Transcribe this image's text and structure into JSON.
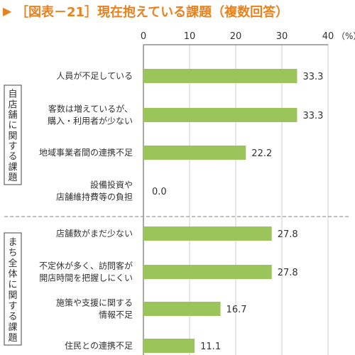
{
  "chart_data": {
    "type": "bar",
    "orientation": "horizontal",
    "title_marker": "▶",
    "title": "［図表－21］現在抱えている課題（複数回答）",
    "unit": "（%）",
    "xlim": [
      0,
      40
    ],
    "xticks": [
      "0",
      "10",
      "20",
      "30",
      "40"
    ],
    "grid": true,
    "groups": [
      {
        "label": "自店舗に関する課題",
        "items": [
          {
            "label": [
              "人員が不足している"
            ],
            "value": 33.3,
            "value_label": "33.3"
          },
          {
            "label": [
              "客数は増えているが、",
              "購入・利用者が少ない"
            ],
            "value": 33.3,
            "value_label": "33.3"
          },
          {
            "label": [
              "地域事業者間の連携不足"
            ],
            "value": 22.2,
            "value_label": "22.2"
          },
          {
            "label": [
              "設備投資や",
              "店舗維持費等の負担"
            ],
            "value": 0.0,
            "value_label": "0.0"
          }
        ]
      },
      {
        "label": "まち全体に関する課題",
        "items": [
          {
            "label": [
              "店舗数がまだ少ない"
            ],
            "value": 27.8,
            "value_label": "27.8"
          },
          {
            "label": [
              "不定休が多く、訪問客が",
              "開店時間を把握しにくい"
            ],
            "value": 27.8,
            "value_label": "27.8"
          },
          {
            "label": [
              "施策や支援に関する",
              "情報不足"
            ],
            "value": 16.7,
            "value_label": "16.7"
          },
          {
            "label": [
              "住民との連携不足"
            ],
            "value": 11.1,
            "value_label": "11.1"
          }
        ]
      }
    ],
    "colors": {
      "title": "#E8821E",
      "bar": "#9BC55A",
      "axis": "#555555",
      "grid": "#cccccc",
      "text": "#333333",
      "separator": "#9a9a9a"
    }
  }
}
